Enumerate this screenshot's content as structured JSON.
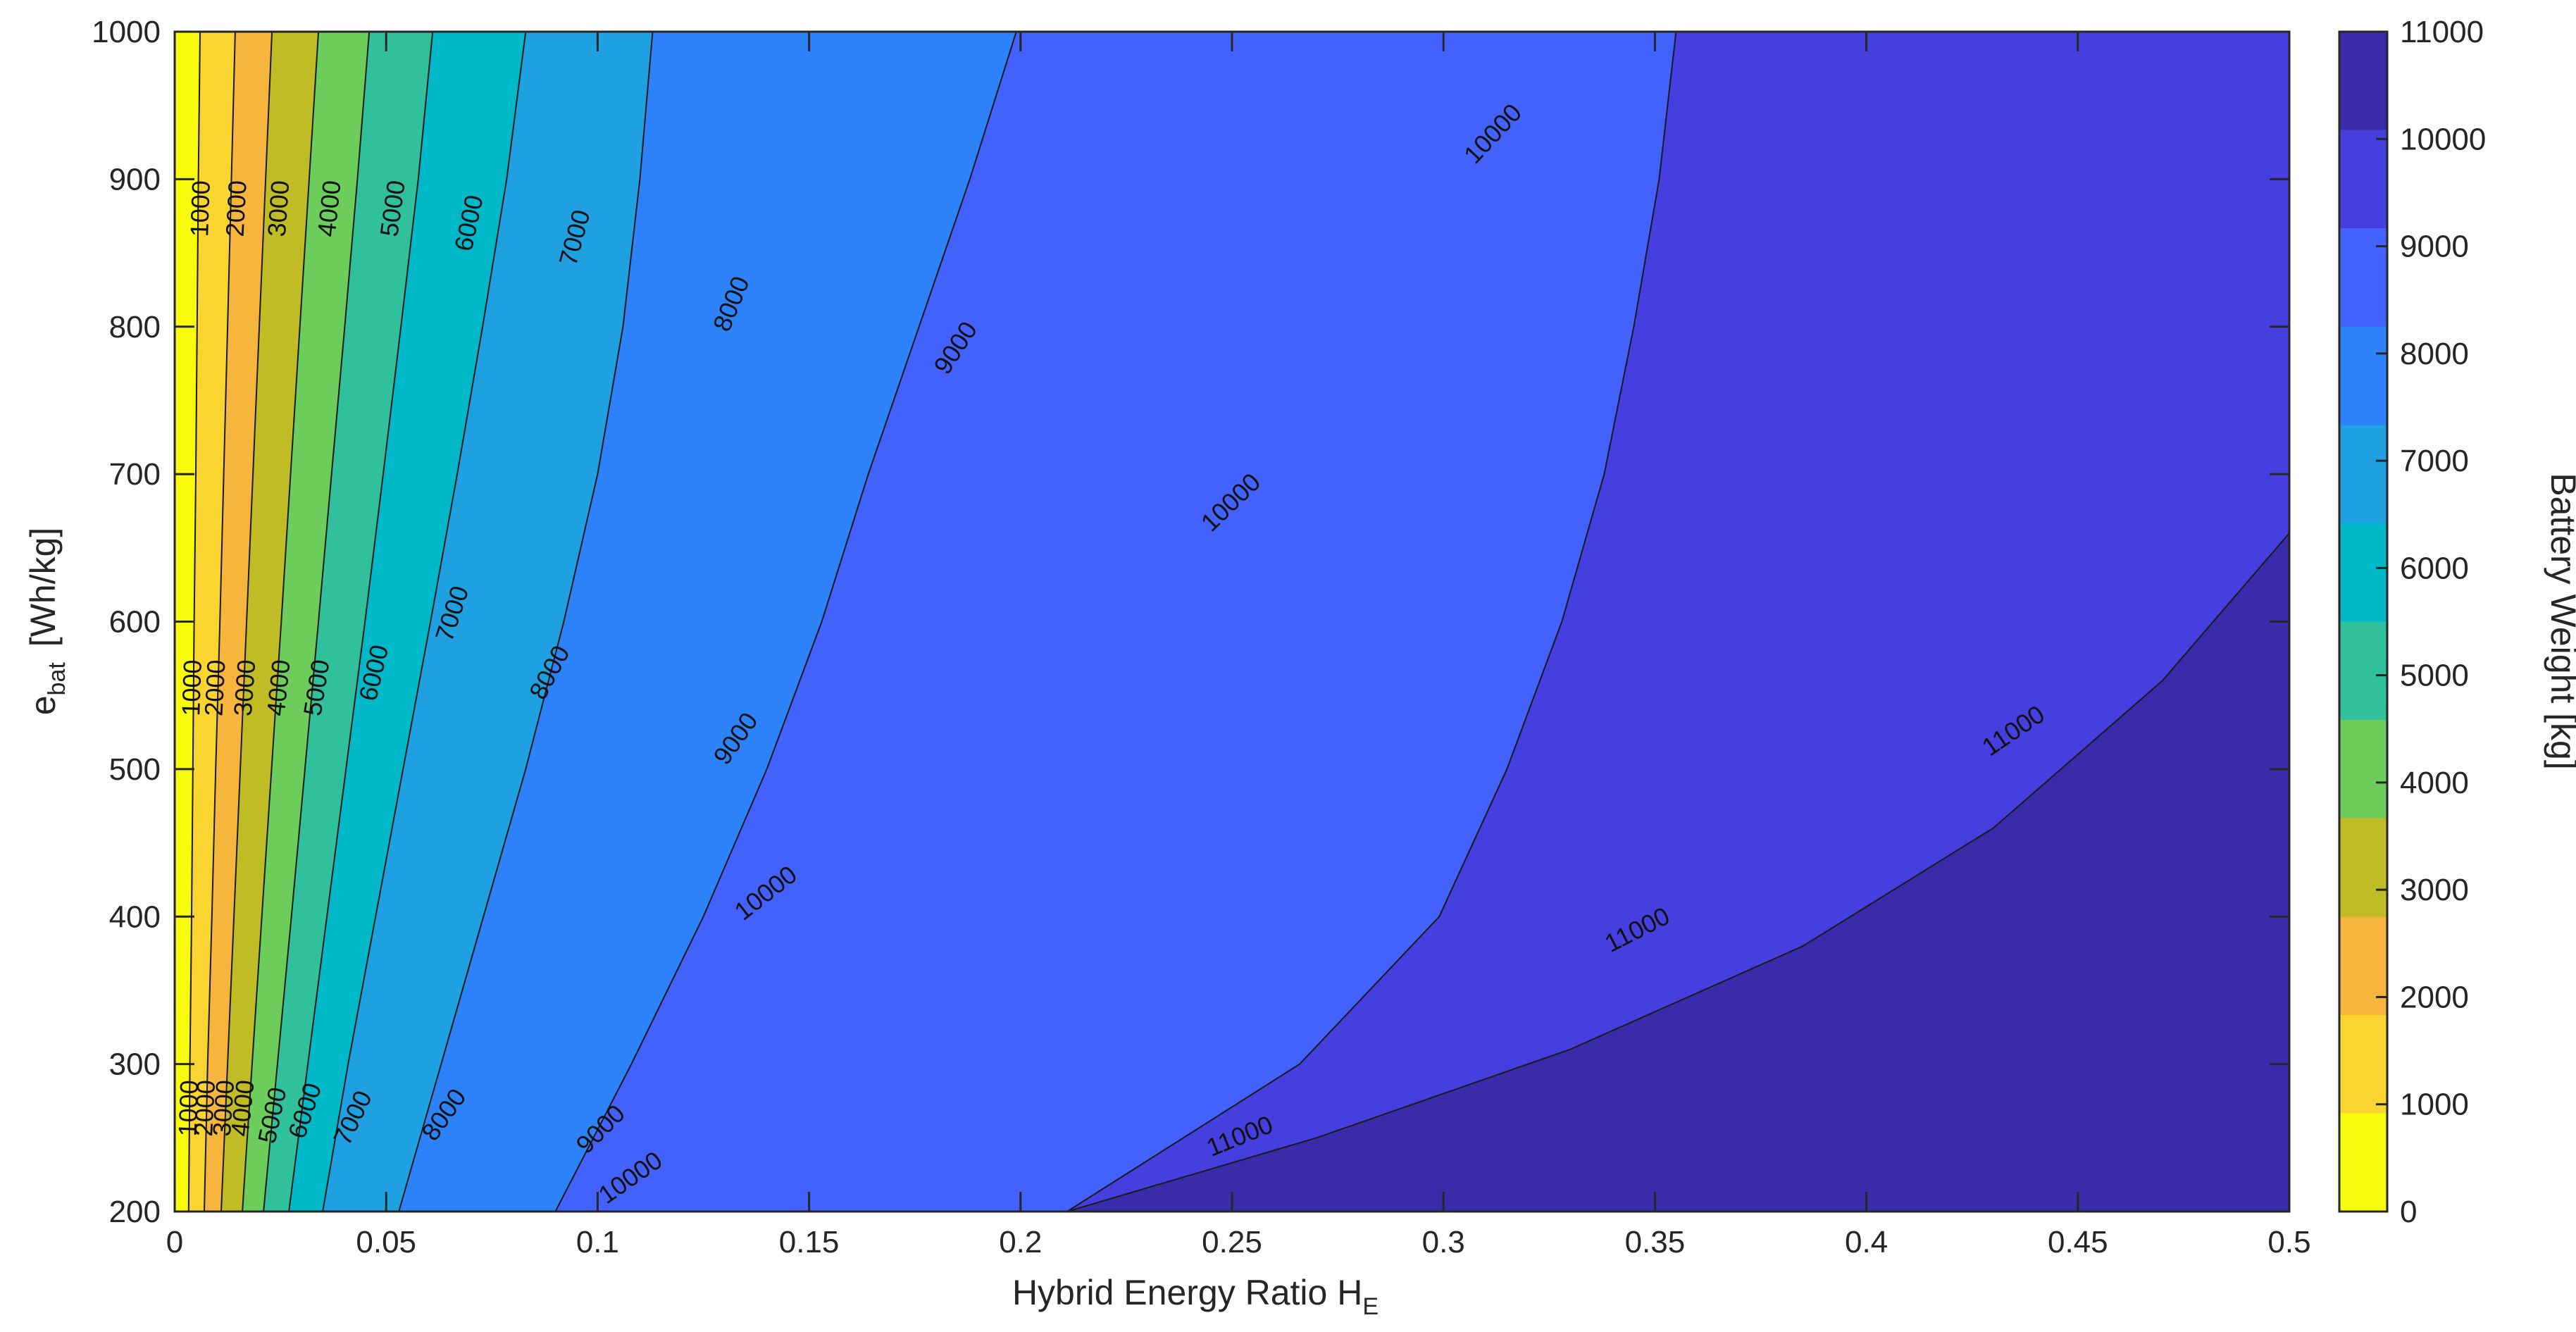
{
  "chart_data": {
    "type": "contour",
    "xlabel": "Hybrid  Energy  Ratio   H",
    "xlabel_sub": "E",
    "ylabel_main": "e",
    "ylabel_sub": "bat",
    "ylabel_unit": "[Wh/kg]",
    "colorbar_label": "Battery Weight [kg]",
    "xlim": [
      0,
      0.5
    ],
    "ylim": [
      200,
      1000
    ],
    "clim": [
      0,
      11000
    ],
    "x_ticks": [
      "0",
      "0.05",
      "0.1",
      "0.15",
      "0.2",
      "0.25",
      "0.3",
      "0.35",
      "0.4",
      "0.45",
      "0.5"
    ],
    "y_ticks": [
      "200",
      "300",
      "400",
      "500",
      "600",
      "700",
      "800",
      "900",
      "1000"
    ],
    "colorbar_ticks": [
      "0",
      "1000",
      "2000",
      "3000",
      "4000",
      "5000",
      "6000",
      "7000",
      "8000",
      "9000",
      "10000",
      "11000"
    ],
    "levels": [
      1000,
      2000,
      3000,
      4000,
      5000,
      6000,
      7000,
      8000,
      9000,
      10000,
      11000
    ],
    "level_colors": [
      "#f9fb0e",
      "#fad531",
      "#f6b53d",
      "#c0bc25",
      "#6ccd5a",
      "#30c09c",
      "#00b9c8",
      "#1fa0e0",
      "#2d82f9",
      "#4361fc",
      "#453fe0",
      "#3a2bab"
    ],
    "contour_lines": [
      {
        "level": 1000,
        "points": [
          [
            0.0033,
            200
          ],
          [
            0.0036,
            300
          ],
          [
            0.004,
            400
          ],
          [
            0.0043,
            500
          ],
          [
            0.0046,
            600
          ],
          [
            0.005,
            700
          ],
          [
            0.0053,
            800
          ],
          [
            0.0056,
            900
          ],
          [
            0.006,
            1000
          ]
        ]
      },
      {
        "level": 2000,
        "points": [
          [
            0.007,
            200
          ],
          [
            0.0078,
            300
          ],
          [
            0.0088,
            400
          ],
          [
            0.0097,
            500
          ],
          [
            0.0107,
            600
          ],
          [
            0.0116,
            700
          ],
          [
            0.0125,
            800
          ],
          [
            0.0134,
            900
          ],
          [
            0.0143,
            1000
          ]
        ]
      },
      {
        "level": 3000,
        "points": [
          [
            0.011,
            200
          ],
          [
            0.0125,
            300
          ],
          [
            0.014,
            400
          ],
          [
            0.0155,
            500
          ],
          [
            0.017,
            600
          ],
          [
            0.0185,
            700
          ],
          [
            0.02,
            800
          ],
          [
            0.0215,
            900
          ],
          [
            0.023,
            1000
          ]
        ]
      },
      {
        "level": 4000,
        "points": [
          [
            0.016,
            200
          ],
          [
            0.0183,
            300
          ],
          [
            0.0206,
            400
          ],
          [
            0.0229,
            500
          ],
          [
            0.0252,
            600
          ],
          [
            0.0274,
            700
          ],
          [
            0.0296,
            800
          ],
          [
            0.0318,
            900
          ],
          [
            0.034,
            1000
          ]
        ]
      },
      {
        "level": 5000,
        "points": [
          [
            0.021,
            200
          ],
          [
            0.0243,
            300
          ],
          [
            0.0276,
            400
          ],
          [
            0.0308,
            500
          ],
          [
            0.034,
            600
          ],
          [
            0.0371,
            700
          ],
          [
            0.0402,
            800
          ],
          [
            0.0432,
            900
          ],
          [
            0.046,
            1000
          ]
        ]
      },
      {
        "level": 6000,
        "points": [
          [
            0.027,
            200
          ],
          [
            0.0315,
            300
          ],
          [
            0.036,
            400
          ],
          [
            0.0405,
            500
          ],
          [
            0.045,
            600
          ],
          [
            0.0493,
            700
          ],
          [
            0.0535,
            800
          ],
          [
            0.0576,
            900
          ],
          [
            0.061,
            1000
          ]
        ]
      },
      {
        "level": 7000,
        "points": [
          [
            0.035,
            200
          ],
          [
            0.041,
            300
          ],
          [
            0.0475,
            400
          ],
          [
            0.054,
            500
          ],
          [
            0.0605,
            600
          ],
          [
            0.0668,
            700
          ],
          [
            0.0728,
            800
          ],
          [
            0.0785,
            900
          ],
          [
            0.083,
            1000
          ]
        ]
      },
      {
        "level": 8000,
        "points": [
          [
            0.053,
            200
          ],
          [
            0.063,
            300
          ],
          [
            0.073,
            400
          ],
          [
            0.083,
            500
          ],
          [
            0.092,
            600
          ],
          [
            0.1,
            700
          ],
          [
            0.106,
            800
          ],
          [
            0.11,
            900
          ],
          [
            0.113,
            1000
          ]
        ]
      },
      {
        "level": 9000,
        "points": [
          [
            0.09,
            200
          ],
          [
            0.108,
            300
          ],
          [
            0.125,
            400
          ],
          [
            0.14,
            500
          ],
          [
            0.153,
            600
          ],
          [
            0.164,
            700
          ],
          [
            0.176,
            800
          ],
          [
            0.188,
            900
          ],
          [
            0.199,
            1000
          ]
        ]
      },
      {
        "level": 10000,
        "points": [
          [
            0.211,
            200
          ],
          [
            0.266,
            300
          ],
          [
            0.299,
            400
          ],
          [
            0.315,
            500
          ],
          [
            0.328,
            600
          ],
          [
            0.338,
            700
          ],
          [
            0.345,
            800
          ],
          [
            0.351,
            900
          ],
          [
            0.355,
            1000
          ]
        ]
      },
      {
        "level": 11000,
        "points": [
          [
            0.211,
            200
          ],
          [
            0.27,
            250
          ],
          [
            0.33,
            310
          ],
          [
            0.385,
            380
          ],
          [
            0.43,
            460
          ],
          [
            0.47,
            560
          ],
          [
            0.5,
            660
          ]
        ]
      }
    ],
    "contour_labels": [
      {
        "text": "1000",
        "x": 0.0065,
        "y": 880,
        "angle": -88
      },
      {
        "text": "2000",
        "x": 0.015,
        "y": 880,
        "angle": -87
      },
      {
        "text": "3000",
        "x": 0.025,
        "y": 880,
        "angle": -86
      },
      {
        "text": "4000",
        "x": 0.037,
        "y": 880,
        "angle": -84
      },
      {
        "text": "5000",
        "x": 0.052,
        "y": 880,
        "angle": -82
      },
      {
        "text": "6000",
        "x": 0.07,
        "y": 870,
        "angle": -78
      },
      {
        "text": "7000",
        "x": 0.095,
        "y": 860,
        "angle": -75
      },
      {
        "text": "8000",
        "x": 0.132,
        "y": 815,
        "angle": -68
      },
      {
        "text": "9000",
        "x": 0.185,
        "y": 785,
        "angle": -57
      },
      {
        "text": "10000",
        "x": 0.312,
        "y": 930,
        "angle": -47
      },
      {
        "text": "1000",
        "x": 0.0045,
        "y": 555,
        "angle": -88
      },
      {
        "text": "2000",
        "x": 0.01,
        "y": 555,
        "angle": -87
      },
      {
        "text": "3000",
        "x": 0.017,
        "y": 555,
        "angle": -86
      },
      {
        "text": "4000",
        "x": 0.025,
        "y": 555,
        "angle": -84
      },
      {
        "text": "5000",
        "x": 0.034,
        "y": 555,
        "angle": -81
      },
      {
        "text": "6000",
        "x": 0.0475,
        "y": 565,
        "angle": -77
      },
      {
        "text": "7000",
        "x": 0.066,
        "y": 605,
        "angle": -72
      },
      {
        "text": "8000",
        "x": 0.089,
        "y": 565,
        "angle": -62
      },
      {
        "text": "9000",
        "x": 0.133,
        "y": 520,
        "angle": -55
      },
      {
        "text": "10000",
        "x": 0.25,
        "y": 680,
        "angle": -44
      },
      {
        "text": "11000",
        "x": 0.435,
        "y": 525,
        "angle": -34
      },
      {
        "text": "1000",
        "x": 0.0037,
        "y": 270,
        "angle": -88
      },
      {
        "text": "2000",
        "x": 0.0076,
        "y": 270,
        "angle": -87
      },
      {
        "text": "3000",
        "x": 0.012,
        "y": 270,
        "angle": -86
      },
      {
        "text": "4000",
        "x": 0.0165,
        "y": 270,
        "angle": -84
      },
      {
        "text": "5000",
        "x": 0.0235,
        "y": 265,
        "angle": -78
      },
      {
        "text": "6000",
        "x": 0.0312,
        "y": 268,
        "angle": -72
      },
      {
        "text": "7000",
        "x": 0.0425,
        "y": 263,
        "angle": -65
      },
      {
        "text": "8000",
        "x": 0.064,
        "y": 265,
        "angle": -55
      },
      {
        "text": "9000",
        "x": 0.101,
        "y": 255,
        "angle": -45
      },
      {
        "text": "10000",
        "x": 0.14,
        "y": 415,
        "angle": -38
      },
      {
        "text": "10000",
        "x": 0.108,
        "y": 222,
        "angle": -35
      },
      {
        "text": "11000",
        "x": 0.346,
        "y": 390,
        "angle": -27
      },
      {
        "text": "11000",
        "x": 0.252,
        "y": 250,
        "angle": -22
      }
    ]
  }
}
